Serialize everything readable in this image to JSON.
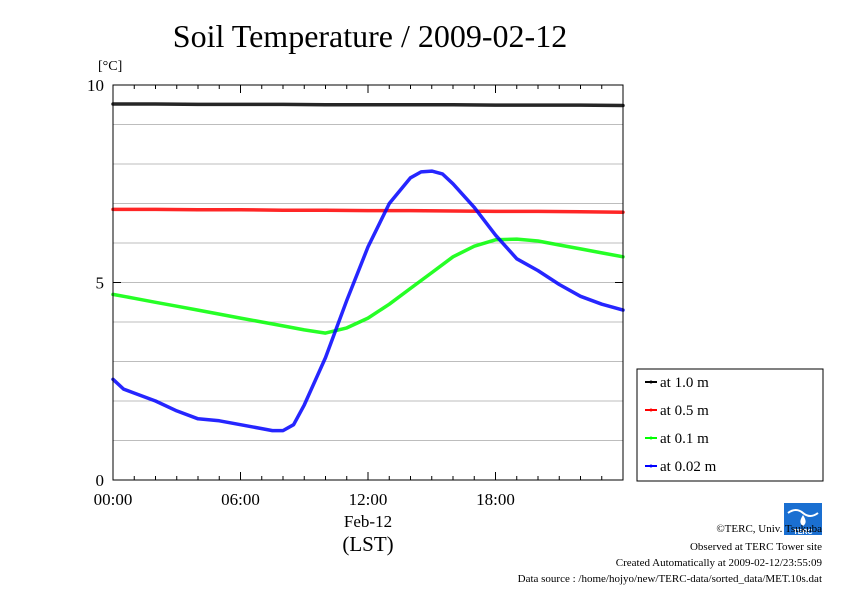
{
  "chart_data": {
    "type": "line",
    "title": "Soil Temperature / 2009-02-12",
    "ylabel": "[°C]",
    "xlabel": "Feb-12",
    "xlabel_sub": "(LST)",
    "xlim": [
      0,
      24
    ],
    "ylim": [
      0,
      10
    ],
    "x_ticks": [
      0,
      6,
      12,
      18
    ],
    "x_tick_labels": [
      "00:00",
      "06:00",
      "12:00",
      "18:00"
    ],
    "y_ticks": [
      0,
      5,
      10
    ],
    "y_tick_labels": [
      "0",
      "5",
      "10"
    ],
    "y_grid": [
      1,
      2,
      3,
      4,
      5,
      6,
      7,
      8,
      9
    ],
    "legend_position": "right-bottom",
    "series": [
      {
        "name": "at 1.0 m",
        "color": "#000000",
        "x": [
          0,
          2,
          4,
          6,
          8,
          10,
          12,
          14,
          16,
          18,
          20,
          22,
          24
        ],
        "y": [
          9.52,
          9.52,
          9.51,
          9.51,
          9.51,
          9.5,
          9.5,
          9.5,
          9.5,
          9.49,
          9.49,
          9.49,
          9.48
        ]
      },
      {
        "name": "at 0.5 m",
        "color": "#ff0000",
        "x": [
          0,
          2,
          4,
          6,
          8,
          10,
          12,
          14,
          16,
          18,
          20,
          22,
          24
        ],
        "y": [
          6.85,
          6.85,
          6.84,
          6.84,
          6.83,
          6.83,
          6.82,
          6.82,
          6.81,
          6.8,
          6.8,
          6.79,
          6.78
        ]
      },
      {
        "name": "at 0.1 m",
        "color": "#00ff00",
        "x": [
          0,
          1,
          2,
          3,
          4,
          5,
          6,
          7,
          8,
          9,
          10,
          11,
          12,
          13,
          14,
          15,
          16,
          17,
          18,
          19,
          20,
          21,
          22,
          23,
          24
        ],
        "y": [
          4.7,
          4.6,
          4.5,
          4.4,
          4.3,
          4.2,
          4.1,
          4.0,
          3.9,
          3.8,
          3.72,
          3.85,
          4.1,
          4.45,
          4.85,
          5.25,
          5.65,
          5.92,
          6.08,
          6.1,
          6.05,
          5.95,
          5.85,
          5.75,
          5.65
        ]
      },
      {
        "name": "at 0.02 m",
        "color": "#0000ff",
        "x": [
          0,
          0.5,
          1,
          2,
          3,
          4,
          5,
          6,
          7,
          7.5,
          8,
          8.5,
          9,
          10,
          11,
          12,
          13,
          14,
          14.5,
          15,
          15.5,
          16,
          17,
          18,
          19,
          20,
          21,
          22,
          23,
          24
        ],
        "y": [
          2.55,
          2.3,
          2.2,
          2.0,
          1.75,
          1.55,
          1.5,
          1.4,
          1.3,
          1.25,
          1.25,
          1.4,
          1.9,
          3.1,
          4.55,
          5.9,
          7.0,
          7.65,
          7.8,
          7.82,
          7.75,
          7.5,
          6.9,
          6.2,
          5.6,
          5.3,
          4.95,
          4.65,
          4.45,
          4.3
        ]
      }
    ]
  },
  "footer": {
    "copyright": "©TERC, Univ. Tsukuba",
    "observed": "Observed at TERC Tower site",
    "created": "Created Automatically at 2009-02-12/23:55:09",
    "source": "Data source : /home/hojyo/new/TERC-data/sorted_data/MET.10s.dat"
  },
  "logo": {
    "text": "TERC",
    "color": "#1a6fd1"
  }
}
